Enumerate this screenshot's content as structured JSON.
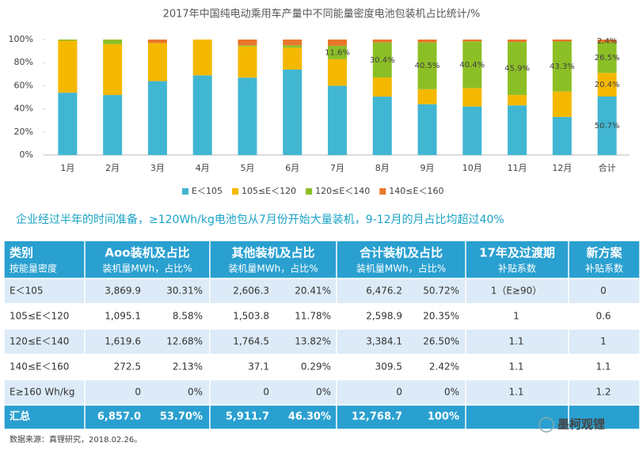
{
  "chart_data": {
    "type": "stacked_bar",
    "title": "2017年中国纯电动乘用车产量中不同能量密度电池包装机占比统计/%",
    "categories": [
      "1月",
      "2月",
      "3月",
      "4月",
      "5月",
      "6月",
      "7月",
      "8月",
      "9月",
      "10月",
      "11月",
      "12月",
      "合计"
    ],
    "series": [
      {
        "name": "E＜105",
        "color": "#41b6d2",
        "values": [
          54,
          52,
          64,
          69,
          67,
          74,
          60,
          50.6,
          44,
          42,
          43,
          33,
          50.7
        ],
        "value_labels": [
          null,
          null,
          null,
          null,
          null,
          null,
          null,
          null,
          null,
          null,
          null,
          null,
          "50.7%"
        ]
      },
      {
        "name": "105≤E＜120",
        "color": "#f5b800",
        "values": [
          45,
          44,
          33,
          31,
          27,
          19,
          23,
          16.5,
          13,
          16,
          9,
          22,
          20.4
        ],
        "value_labels": [
          null,
          null,
          null,
          null,
          null,
          null,
          null,
          null,
          null,
          null,
          null,
          null,
          "20.4%"
        ]
      },
      {
        "name": "120≤E＜140",
        "color": "#8cbf26",
        "values": [
          1,
          4,
          0,
          0,
          1,
          2,
          11.6,
          30.4,
          40.5,
          40.4,
          45.9,
          43.3,
          26.5
        ],
        "value_labels": [
          null,
          null,
          null,
          null,
          null,
          null,
          "11.6%",
          "30.4%",
          "40.5%",
          "40.4%",
          "45.9%",
          "43.3%",
          "26.5%"
        ]
      },
      {
        "name": "140≤E＜160",
        "color": "#e8762b",
        "values": [
          0,
          0,
          3,
          0,
          5,
          5,
          5.4,
          2.5,
          2.5,
          1.6,
          2.1,
          1.7,
          2.4
        ],
        "value_labels": [
          null,
          null,
          null,
          null,
          null,
          null,
          null,
          null,
          null,
          null,
          null,
          null,
          "2.4%"
        ]
      }
    ],
    "ylim": [
      0,
      100
    ],
    "yticks": [
      {
        "value": 0,
        "label": "0%"
      },
      {
        "value": 20,
        "label": "20%"
      },
      {
        "value": 40,
        "label": "40%"
      },
      {
        "value": 60,
        "label": "60%"
      },
      {
        "value": 80,
        "label": "80%"
      },
      {
        "value": 100,
        "label": "100%"
      }
    ],
    "legend": "bottom"
  },
  "headline": "企业经过半年的时间准备，≥120Wh/kg电池包从7月份开始大量装机，9-12月的月占比均超过40%",
  "table": {
    "header": [
      {
        "title": "类别",
        "subtitle": "按能量密度"
      },
      {
        "title": "Aoo装机及占比",
        "subtitle": "装机量MWh，占比%"
      },
      {
        "title": "其他装机及占比",
        "subtitle": "装机量MWh，占比%"
      },
      {
        "title": "合计装机及占比",
        "subtitle": "装机量MWh，占比%"
      },
      {
        "title": "17年及过渡期",
        "subtitle": "补贴系数"
      },
      {
        "title": "新方案",
        "subtitle": "补贴系数"
      }
    ],
    "rows": [
      [
        "E＜105",
        "3,869.9",
        "30.31%",
        "2,606.3",
        "20.41%",
        "6,476.2",
        "50.72%",
        "1（E≥90）",
        "0"
      ],
      [
        "105≤E＜120",
        "1,095.1",
        "8.58%",
        "1,503.8",
        "11.78%",
        "2,598.9",
        "20.35%",
        "1",
        "0.6"
      ],
      [
        "120≤E＜140",
        "1,619.6",
        "12.68%",
        "1,764.5",
        "13.82%",
        "3,384.1",
        "26.50%",
        "1.1",
        "1"
      ],
      [
        "140≤E＜160",
        "272.5",
        "2.13%",
        "37.1",
        "0.29%",
        "309.5",
        "2.42%",
        "1.1",
        "1.1"
      ],
      [
        "E≥160 Wh/kg",
        "0",
        "0%",
        "0",
        "0%",
        "0",
        "0%",
        "1.1",
        "1.2"
      ]
    ],
    "total": [
      "汇总",
      "6,857.0",
      "53.70%",
      "5,911.7",
      "46.30%",
      "12,768.7",
      "100%"
    ]
  },
  "source": "数据来源：真锂研究，2018.02.26。",
  "watermark": "墨柯观锂"
}
